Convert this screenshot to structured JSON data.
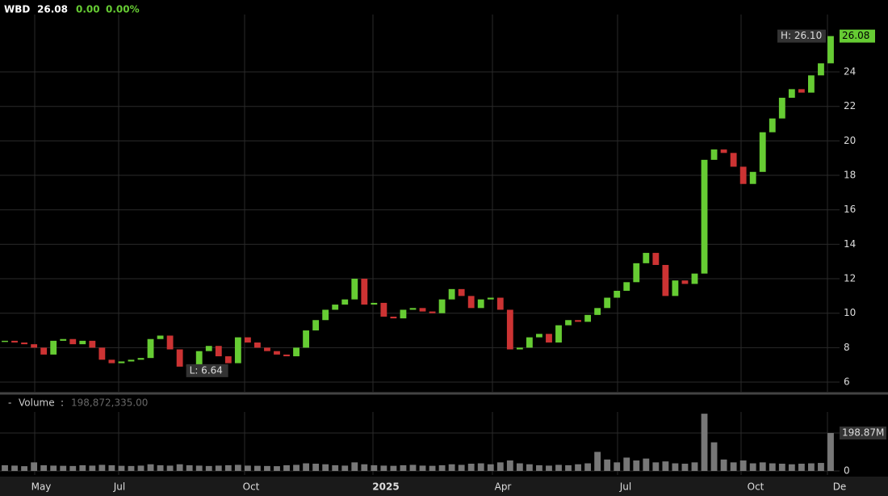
{
  "chart_data": {
    "type": "candlestick",
    "symbol": "WBD",
    "price": 26.08,
    "change": "0.00",
    "change_pct": "0.00%",
    "high_label": "H: 26.10",
    "low_label": "L: 6.64",
    "volume_title": "Volume",
    "volume_label": "198,872,335.00",
    "up_color": "#66cc33",
    "down_color": "#cc3333",
    "volume_color": "#777777",
    "close": [
      8.4,
      8.3,
      8.2,
      8.0,
      7.6,
      8.4,
      8.5,
      8.2,
      8.4,
      8.0,
      7.3,
      7.1,
      7.2,
      7.3,
      7.4,
      8.5,
      8.7,
      7.9,
      6.9,
      7.0,
      7.8,
      8.1,
      7.5,
      7.1,
      8.6,
      8.3,
      8.0,
      7.8,
      7.6,
      7.5,
      8.0,
      9.0,
      9.6,
      10.2,
      10.5,
      10.8,
      12.0,
      10.5,
      10.6,
      9.8,
      9.7,
      10.2,
      10.3,
      10.1,
      10.0,
      10.8,
      11.4,
      11.0,
      10.3,
      10.8,
      10.9,
      10.2,
      7.9,
      8.0,
      8.6,
      8.8,
      8.3,
      9.3,
      9.6,
      9.5,
      9.9,
      10.3,
      10.9,
      11.3,
      11.8,
      12.9,
      13.5,
      12.8,
      11.0,
      11.9,
      11.7,
      12.3,
      18.9,
      19.5,
      19.3,
      18.5,
      17.5,
      18.2,
      20.5,
      21.3,
      22.5,
      23.0,
      22.8,
      23.8,
      24.5,
      26.08
    ],
    "volume": [
      30000000,
      28000000,
      25000000,
      45000000,
      30000000,
      28000000,
      27000000,
      26000000,
      30000000,
      28000000,
      32000000,
      30000000,
      27000000,
      26000000,
      28000000,
      35000000,
      30000000,
      28000000,
      35000000,
      30000000,
      28000000,
      26000000,
      28000000,
      30000000,
      32000000,
      28000000,
      27000000,
      26000000,
      25000000,
      30000000,
      32000000,
      40000000,
      38000000,
      35000000,
      30000000,
      28000000,
      45000000,
      35000000,
      30000000,
      28000000,
      27000000,
      30000000,
      32000000,
      28000000,
      27000000,
      30000000,
      35000000,
      32000000,
      38000000,
      40000000,
      35000000,
      45000000,
      55000000,
      40000000,
      35000000,
      30000000,
      28000000,
      32000000,
      30000000,
      35000000,
      40000000,
      100000000,
      60000000,
      45000000,
      70000000,
      55000000,
      65000000,
      45000000,
      50000000,
      40000000,
      38000000,
      45000000,
      300000000,
      150000000,
      60000000,
      45000000,
      55000000,
      40000000,
      45000000,
      40000000,
      38000000,
      35000000,
      38000000,
      40000000,
      42000000,
      198872335
    ],
    "ylim": [
      5.44,
      27.33
    ],
    "yticks": [
      6,
      8,
      10,
      12,
      14,
      16,
      18,
      20,
      22,
      24
    ],
    "y2lim": [
      0,
      309000000
    ],
    "y2ticks": [
      0,
      {
        "value": 198872335,
        "label": "198.87M"
      }
    ],
    "xticks": [
      "May",
      "Jul",
      "Oct",
      "2025",
      "Apr",
      "Jul",
      "Oct",
      "De"
    ]
  }
}
